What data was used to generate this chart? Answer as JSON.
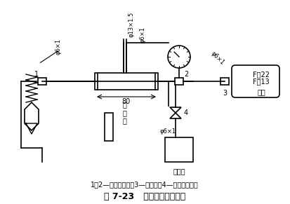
{
  "title": "图 7-23   感温包的充氟方法",
  "caption": "1、2—高压角尺阀；3—氟瓶阀；4—真空泵吸入阀",
  "bg_color": "#ffffff",
  "line_color": "#000000",
  "label_phi13": "φ13×1.5",
  "label_phi6_1": "φ6×1",
  "label_phi6_2": "φ6×1",
  "label_phi6_3": "φ6×1",
  "label_phi6_4": "φ6×1",
  "label_80": "80",
  "label_感温包": "感\n温\n包",
  "label_真空泵": "真空泵",
  "label_F22": "F－22",
  "label_F13": "F－13",
  "label_钢瓶": "钢瓶",
  "label_1": "1",
  "label_2": "2",
  "label_3": "3",
  "label_4": "4"
}
